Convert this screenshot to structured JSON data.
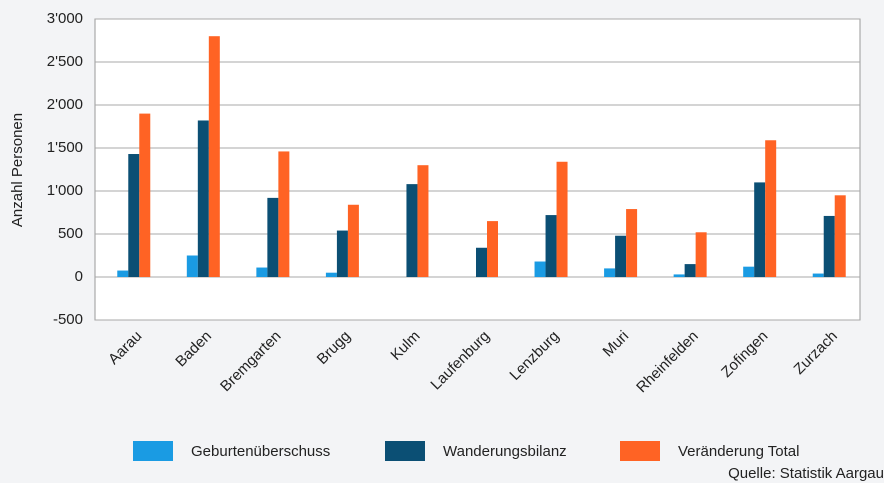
{
  "chart_data": {
    "type": "bar",
    "y_label": "Anzahl Personen",
    "source": "Quelle: Statistik Aargau",
    "categories": [
      "Aarau",
      "Baden",
      "Bremgarten",
      "Brugg",
      "Kulm",
      "Laufenburg",
      "Lenzburg",
      "Muri",
      "Rheinfelden",
      "Zofingen",
      "Zurzach"
    ],
    "series": [
      {
        "name": "Geburtenüberschuss",
        "color": "#1a9be3",
        "values": [
          75,
          250,
          110,
          50,
          0,
          0,
          180,
          100,
          30,
          120,
          40
        ]
      },
      {
        "name": "Wanderungsbilanz",
        "color": "#0b4f74",
        "values": [
          1430,
          1820,
          920,
          540,
          1080,
          340,
          720,
          480,
          150,
          1100,
          710
        ]
      },
      {
        "name": "Veränderung Total",
        "color": "#ff6324",
        "values": [
          1900,
          2800,
          1460,
          840,
          1300,
          650,
          1340,
          790,
          520,
          1590,
          950
        ]
      }
    ],
    "ylim": [
      -500,
      3000
    ],
    "yticks": [
      -500,
      0,
      500,
      {
        "value": 1000,
        "label": "1'000"
      },
      {
        "value": 1500,
        "label": "1'500"
      },
      {
        "value": 2000,
        "label": "2'000"
      },
      {
        "value": 2500,
        "label": "2'500"
      },
      {
        "value": 3000,
        "label": "3'000"
      }
    ],
    "grid": true
  }
}
